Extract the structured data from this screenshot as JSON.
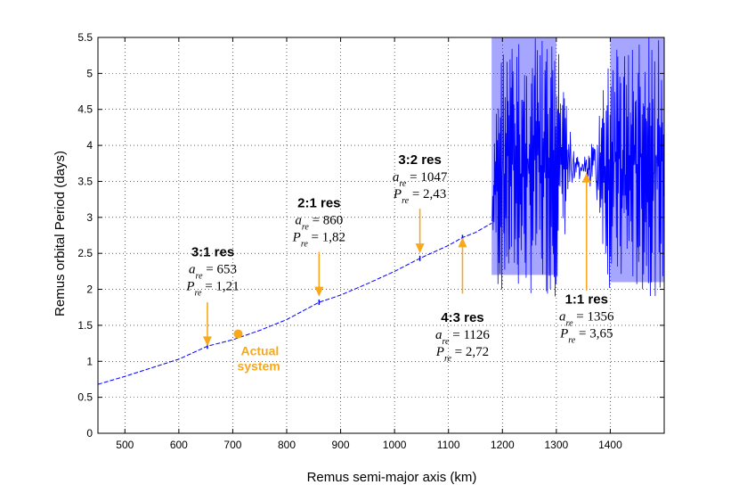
{
  "chart_data": {
    "type": "line",
    "xlabel": "Remus semi-major axis (km)",
    "ylabel": "Remus orbital Period (days)",
    "xlim": [
      450,
      1500
    ],
    "ylim": [
      0,
      5.5
    ],
    "xticks": [
      500,
      600,
      700,
      800,
      900,
      1000,
      1100,
      1200,
      1300,
      1400
    ],
    "yticks": [
      0,
      0.5,
      1,
      1.5,
      2,
      2.5,
      3,
      3.5,
      4,
      4.5,
      5,
      5.5
    ],
    "grid": true,
    "series_color": "#0000ff",
    "annotation_color": "#f7a81b",
    "series": [
      {
        "x": [
          450,
          500,
          550,
          600,
          653,
          700,
          750,
          800,
          860,
          900,
          950,
          1000,
          1047,
          1100,
          1126,
          1150,
          1180
        ],
        "y": [
          0.68,
          0.79,
          0.91,
          1.03,
          1.21,
          1.3,
          1.43,
          1.58,
          1.82,
          1.92,
          2.08,
          2.25,
          2.43,
          2.61,
          2.72,
          2.79,
          2.92
        ]
      }
    ],
    "chaotic_region": {
      "x_range": [
        1180,
        1500
      ],
      "y_range_outer": [
        1.9,
        5.5
      ],
      "neck_x": [
        1300,
        1400
      ],
      "neck_y": [
        3.55,
        3.85
      ]
    },
    "actual_system": {
      "x": 710,
      "y": 1.38,
      "label_line1": "Actual",
      "label_line2": "system"
    },
    "annotations": [
      {
        "id": "r31",
        "head": "3:1 res",
        "a_line": "a_re = 653",
        "p_line": "P_re = 1,21",
        "arrow_x": 653,
        "arrow_from_y": 1.82,
        "arrow_to_y": 1.21,
        "text_x": 663,
        "text_y": 2.46
      },
      {
        "id": "r21",
        "head": "2:1 res",
        "a_line": "a_re = 860",
        "p_line": "P_re = 1,82",
        "arrow_x": 860,
        "arrow_from_y": 2.52,
        "arrow_to_y": 1.9,
        "text_x": 860,
        "text_y": 3.14
      },
      {
        "id": "r32",
        "head": "3:2 res",
        "a_line": "a_re = 1047",
        "p_line": "P_re = 2,43",
        "arrow_x": 1047,
        "arrow_from_y": 3.12,
        "arrow_to_y": 2.5,
        "text_x": 1047,
        "text_y": 3.74
      },
      {
        "id": "r43",
        "head": "4:3 res",
        "a_line": "a_re = 1126",
        "p_line": "P_re = 2,72",
        "arrow_x": 1126,
        "arrow_from_y": 1.94,
        "arrow_to_y": 2.72,
        "text_x": 1126,
        "text_y": 1.55
      },
      {
        "id": "r11",
        "head": "1:1 res",
        "a_line": "a_re = 1356",
        "p_line": "P_re = 3,65",
        "arrow_x": 1356,
        "arrow_from_y": 1.98,
        "arrow_to_y": 3.62,
        "text_x": 1356,
        "text_y": 1.8
      }
    ]
  }
}
